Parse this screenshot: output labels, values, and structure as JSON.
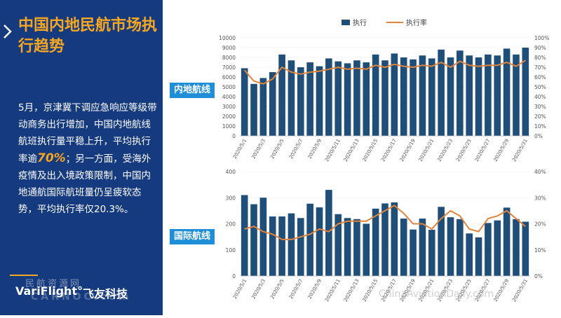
{
  "page": {
    "title": "中国内地民航市场执行趋势",
    "description_parts": [
      "5月，京津冀下调应急响应等级带动商务出行增加，中国内地航线航班执行量平稳上升，平均执行率逾",
      "70%",
      "；另一方面，受海外疫情及出入境政策限制，中国内地通航国际航班量仍呈疲软态势，平均执行率仅20.3%。"
    ],
    "logo_brand": "VariFlight°",
    "logo_brand_cn": "飞友科技",
    "watermark_top": "民航资源网",
    "watermark_left": "CARNOC.com",
    "watermark_right": "ChinaAviationDaily.com"
  },
  "colors": {
    "bar": "#1f4e79",
    "line": "#e0843c",
    "panel": "#163a7e",
    "accent": "#f5a623",
    "label_bg": "#1f8fd8"
  },
  "legend": {
    "bar_label": "执行",
    "line_label": "执行率"
  },
  "chart_data": [
    {
      "type": "bar",
      "label": "内地航线",
      "categories": [
        "2020/5/1",
        "2020/5/2",
        "2020/5/3",
        "2020/5/4",
        "2020/5/5",
        "2020/5/6",
        "2020/5/7",
        "2020/5/8",
        "2020/5/9",
        "2020/5/10",
        "2020/5/11",
        "2020/5/12",
        "2020/5/13",
        "2020/5/14",
        "2020/5/15",
        "2020/5/16",
        "2020/5/17",
        "2020/5/18",
        "2020/5/19",
        "2020/5/20",
        "2020/5/21",
        "2020/5/22",
        "2020/5/23",
        "2020/5/24",
        "2020/5/25",
        "2020/5/26",
        "2020/5/27",
        "2020/5/28",
        "2020/5/29",
        "2020/5/30",
        "2020/5/31"
      ],
      "tick_labels": [
        "2020/5/1",
        "2020/5/3",
        "2020/5/5",
        "2020/5/7",
        "2020/5/9",
        "2020/5/11",
        "2020/5/13",
        "2020/5/15",
        "2020/5/17",
        "2020/5/19",
        "2020/5/21",
        "2020/5/23",
        "2020/5/25",
        "2020/5/27",
        "2020/5/29",
        "2020/5/31"
      ],
      "series": [
        {
          "name": "执行",
          "type": "bar",
          "axis": "left",
          "values": [
            6900,
            5300,
            5900,
            6500,
            8300,
            7700,
            7000,
            7500,
            7100,
            7900,
            7600,
            7400,
            7700,
            7500,
            8300,
            7700,
            8400,
            8000,
            7800,
            8200,
            7900,
            8800,
            8000,
            8700,
            8200,
            8000,
            8300,
            8200,
            8900,
            8300,
            9000
          ]
        },
        {
          "name": "执行率",
          "type": "line",
          "axis": "right",
          "values": [
            67,
            56,
            53,
            58,
            70,
            65,
            63,
            65,
            66,
            68,
            70,
            68,
            69,
            68,
            72,
            70,
            73,
            71,
            70,
            72,
            71,
            75,
            70,
            76,
            72,
            71,
            72,
            72,
            75,
            71,
            77
          ]
        }
      ],
      "ylim_left": [
        0,
        10000
      ],
      "yticks_left": [
        0,
        1000,
        2000,
        3000,
        4000,
        5000,
        6000,
        7000,
        8000,
        9000,
        10000
      ],
      "ylim_right": [
        0,
        100
      ],
      "yticks_right": [
        "0%",
        "10%",
        "20%",
        "30%",
        "40%",
        "50%",
        "60%",
        "70%",
        "80%",
        "90%",
        "100%"
      ],
      "legend": "top"
    },
    {
      "type": "bar",
      "label": "国际航线",
      "categories": [
        "2020/5/1",
        "2020/5/2",
        "2020/5/3",
        "2020/5/4",
        "2020/5/5",
        "2020/5/6",
        "2020/5/7",
        "2020/5/8",
        "2020/5/9",
        "2020/5/10",
        "2020/5/11",
        "2020/5/12",
        "2020/5/13",
        "2020/5/14",
        "2020/5/15",
        "2020/5/16",
        "2020/5/17",
        "2020/5/18",
        "2020/5/19",
        "2020/5/20",
        "2020/5/21",
        "2020/5/22",
        "2020/5/23",
        "2020/5/24",
        "2020/5/25",
        "2020/5/26",
        "2020/5/27",
        "2020/5/28",
        "2020/5/29",
        "2020/5/30",
        "2020/5/31"
      ],
      "tick_labels": [
        "2020/5/1",
        "2020/5/3",
        "2020/5/5",
        "2020/5/7",
        "2020/5/9",
        "2020/5/11",
        "2020/5/13",
        "2020/5/15",
        "2020/5/17",
        "2020/5/19",
        "2020/5/21",
        "2020/5/23",
        "2020/5/25",
        "2020/5/27",
        "2020/5/29",
        "2020/5/31"
      ],
      "series": [
        {
          "name": "执行",
          "type": "bar",
          "axis": "left",
          "values": [
            310,
            275,
            300,
            228,
            228,
            240,
            222,
            277,
            263,
            330,
            237,
            222,
            218,
            200,
            258,
            278,
            282,
            220,
            178,
            220,
            177,
            265,
            225,
            218,
            163,
            148,
            203,
            213,
            262,
            218,
            208
          ]
        },
        {
          "name": "执行率",
          "type": "line",
          "axis": "right",
          "values": [
            18,
            19,
            17,
            16,
            14,
            14,
            15,
            16,
            18,
            17,
            20,
            21,
            21,
            21,
            23,
            25,
            27,
            24,
            20,
            20,
            18,
            22,
            25,
            23,
            18,
            17,
            22,
            23,
            25,
            22,
            19
          ]
        }
      ],
      "ylim_left": [
        0,
        400
      ],
      "yticks_left": [
        0,
        100,
        200,
        300,
        400
      ],
      "ylim_right": [
        0,
        40
      ],
      "yticks_right": [
        "0%",
        "10%",
        "20%",
        "30%",
        "40%"
      ]
    }
  ]
}
